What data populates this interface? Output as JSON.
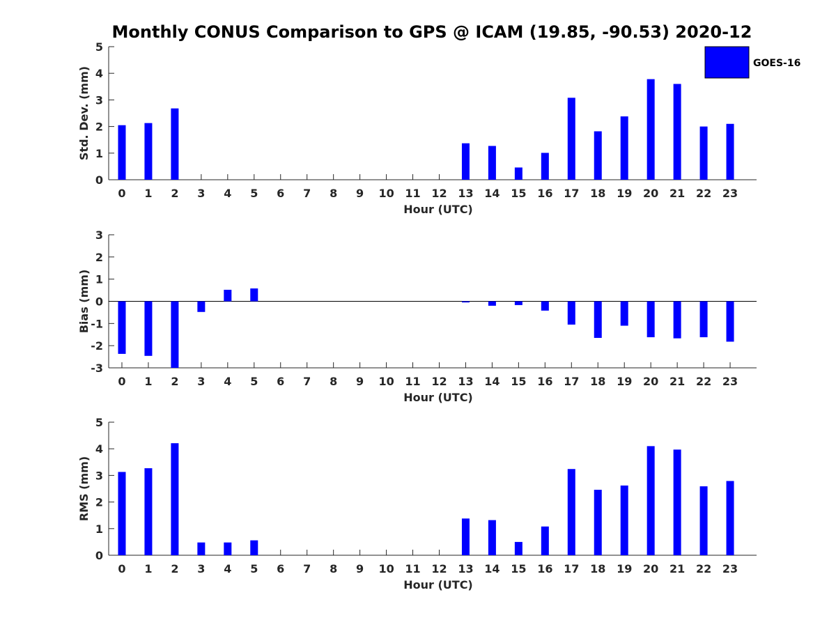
{
  "title": "Monthly CONUS Comparison to GPS @ ICAM (19.85, -90.53) 2020-12",
  "legend": {
    "label": "GOES-16",
    "color": "#0000ff"
  },
  "chart_data": [
    {
      "type": "bar",
      "id": "std",
      "ylabel": "Std. Dev. (mm)",
      "xlabel": "Hour (UTC)",
      "ylim": [
        0,
        5
      ],
      "yticks": [
        0,
        1,
        2,
        3,
        4,
        5
      ],
      "categories": [
        "0",
        "1",
        "2",
        "3",
        "4",
        "5",
        "6",
        "7",
        "8",
        "9",
        "10",
        "11",
        "12",
        "13",
        "14",
        "15",
        "16",
        "17",
        "18",
        "19",
        "20",
        "21",
        "22",
        "23"
      ],
      "series": [
        {
          "name": "GOES-16",
          "values": [
            2.05,
            2.13,
            2.68,
            0,
            0,
            0,
            0,
            0,
            0,
            0,
            0,
            0,
            0,
            1.37,
            1.27,
            0.46,
            1.01,
            3.08,
            1.82,
            2.38,
            3.78,
            3.6,
            2.0,
            2.1
          ]
        }
      ]
    },
    {
      "type": "bar",
      "id": "bias",
      "ylabel": "Bias (mm)",
      "xlabel": "Hour (UTC)",
      "ylim": [
        -3,
        3
      ],
      "yticks": [
        -3,
        -2,
        -1,
        0,
        1,
        2,
        3
      ],
      "categories": [
        "0",
        "1",
        "2",
        "3",
        "4",
        "5",
        "6",
        "7",
        "8",
        "9",
        "10",
        "11",
        "12",
        "13",
        "14",
        "15",
        "16",
        "17",
        "18",
        "19",
        "20",
        "21",
        "22",
        "23"
      ],
      "series": [
        {
          "name": "GOES-16",
          "values": [
            -2.37,
            -2.46,
            -3.0,
            -0.48,
            0.52,
            0.58,
            0,
            0,
            0,
            0,
            0,
            0,
            0,
            -0.05,
            -0.2,
            -0.17,
            -0.42,
            -1.05,
            -1.65,
            -1.1,
            -1.62,
            -1.67,
            -1.62,
            -1.82
          ]
        }
      ]
    },
    {
      "type": "bar",
      "id": "rms",
      "ylabel": "RMS (mm)",
      "xlabel": "Hour (UTC)",
      "ylim": [
        0,
        5
      ],
      "yticks": [
        0,
        1,
        2,
        3,
        4,
        5
      ],
      "categories": [
        "0",
        "1",
        "2",
        "3",
        "4",
        "5",
        "6",
        "7",
        "8",
        "9",
        "10",
        "11",
        "12",
        "13",
        "14",
        "15",
        "16",
        "17",
        "18",
        "19",
        "20",
        "21",
        "22",
        "23"
      ],
      "series": [
        {
          "name": "GOES-16",
          "values": [
            3.13,
            3.27,
            4.21,
            0.48,
            0.48,
            0.56,
            0,
            0,
            0,
            0,
            0,
            0,
            0,
            1.38,
            1.32,
            0.5,
            1.08,
            3.24,
            2.46,
            2.62,
            4.1,
            3.97,
            2.59,
            2.79
          ]
        }
      ]
    }
  ]
}
